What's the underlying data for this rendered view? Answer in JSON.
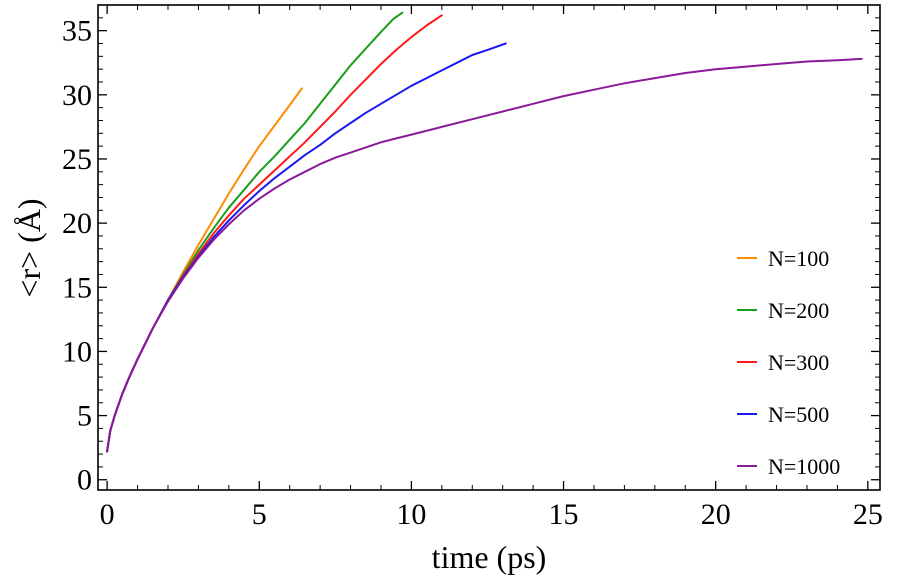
{
  "chart_data": {
    "type": "line",
    "title": "",
    "xlabel": "time (ps)",
    "ylabel": "<r> (Å)",
    "xlim": [
      -0.3,
      25.4
    ],
    "ylim": [
      -0.8,
      37.0
    ],
    "xticks": [
      0,
      5,
      10,
      15,
      20,
      25
    ],
    "yticks": [
      0,
      5,
      10,
      15,
      20,
      25,
      30,
      35
    ],
    "grid": false,
    "legend_position": "bottom-right",
    "series": [
      {
        "name": "N=100",
        "color": "#ff8c00",
        "x": [
          0,
          0.1,
          0.25,
          0.5,
          0.75,
          1.0,
          1.5,
          2.0,
          2.5,
          3.0,
          3.5,
          4.0,
          4.5,
          5.0,
          5.5,
          6.0,
          6.4
        ],
        "y": [
          2.2,
          3.8,
          5.0,
          6.7,
          8.1,
          9.4,
          11.8,
          14.0,
          16.2,
          18.3,
          20.3,
          22.3,
          24.2,
          26.0,
          27.6,
          29.2,
          30.5
        ]
      },
      {
        "name": "N=200",
        "color": "#1a9e1a",
        "x": [
          0,
          0.1,
          0.25,
          0.5,
          0.75,
          1.0,
          1.5,
          2.0,
          2.5,
          3.0,
          3.5,
          4.0,
          4.5,
          5.0,
          5.5,
          6.0,
          6.5,
          7.0,
          7.5,
          8.0,
          8.5,
          9.0,
          9.4,
          9.7
        ],
        "y": [
          2.2,
          3.8,
          5.0,
          6.7,
          8.1,
          9.4,
          11.8,
          14.0,
          16.0,
          17.9,
          19.6,
          21.2,
          22.6,
          24.0,
          25.2,
          26.5,
          27.8,
          29.3,
          30.8,
          32.3,
          33.6,
          34.9,
          35.9,
          36.4
        ]
      },
      {
        "name": "N=300",
        "color": "#ff1a1a",
        "x": [
          0,
          0.1,
          0.25,
          0.5,
          0.75,
          1.0,
          1.5,
          2.0,
          2.5,
          3.0,
          3.5,
          4.0,
          4.5,
          5.0,
          5.5,
          6.0,
          6.5,
          7.0,
          7.5,
          8.0,
          8.5,
          9.0,
          9.5,
          10.0,
          10.5,
          11.0
        ],
        "y": [
          2.2,
          3.8,
          5.0,
          6.7,
          8.1,
          9.4,
          11.8,
          14.0,
          15.9,
          17.6,
          19.2,
          20.6,
          21.9,
          23.0,
          24.1,
          25.2,
          26.3,
          27.5,
          28.7,
          30.0,
          31.2,
          32.4,
          33.5,
          34.5,
          35.4,
          36.2
        ]
      },
      {
        "name": "N=500",
        "color": "#1a1aee",
        "x": [
          0,
          0.1,
          0.25,
          0.5,
          0.75,
          1.0,
          1.5,
          2.0,
          2.5,
          3.0,
          3.5,
          4.0,
          4.5,
          5.0,
          5.5,
          6.0,
          6.5,
          7.0,
          7.5,
          8.0,
          8.5,
          9.0,
          9.5,
          10.0,
          10.5,
          11.0,
          11.5,
          12.0,
          12.5,
          13.1
        ],
        "y": [
          2.2,
          3.8,
          5.0,
          6.7,
          8.1,
          9.4,
          11.8,
          14.0,
          15.8,
          17.4,
          18.9,
          20.2,
          21.4,
          22.5,
          23.5,
          24.4,
          25.3,
          26.1,
          27.0,
          27.8,
          28.6,
          29.3,
          30.0,
          30.7,
          31.3,
          31.9,
          32.5,
          33.1,
          33.5,
          34.0
        ]
      },
      {
        "name": "N=1000",
        "color": "#8b1a9b",
        "x": [
          0,
          0.1,
          0.25,
          0.5,
          0.75,
          1.0,
          1.5,
          2.0,
          2.5,
          3.0,
          3.5,
          4.0,
          4.5,
          5.0,
          5.5,
          6.0,
          6.5,
          7.0,
          7.5,
          8.0,
          8.5,
          9.0,
          9.5,
          10.0,
          11.0,
          12.0,
          13.0,
          14.0,
          15.0,
          16.0,
          17.0,
          18.0,
          19.0,
          20.0,
          21.0,
          22.0,
          23.0,
          24.0,
          24.8
        ],
        "y": [
          2.2,
          3.8,
          5.0,
          6.7,
          8.1,
          9.4,
          11.8,
          13.9,
          15.7,
          17.3,
          18.7,
          19.9,
          21.0,
          21.9,
          22.7,
          23.4,
          24.0,
          24.6,
          25.1,
          25.5,
          25.9,
          26.3,
          26.6,
          26.9,
          27.5,
          28.1,
          28.7,
          29.3,
          29.9,
          30.4,
          30.9,
          31.3,
          31.7,
          32.0,
          32.2,
          32.4,
          32.6,
          32.7,
          32.8
        ]
      }
    ]
  }
}
